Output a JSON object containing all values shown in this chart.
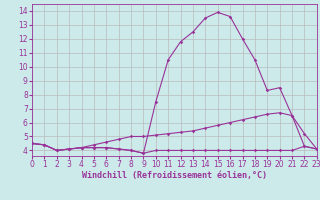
{
  "xlabel": "Windchill (Refroidissement éolien,°C)",
  "bg_color": "#cceaea",
  "line_color": "#993399",
  "grid_color": "#bbbbbb",
  "x_values": [
    0,
    1,
    2,
    3,
    4,
    5,
    6,
    7,
    8,
    9,
    10,
    11,
    12,
    13,
    14,
    15,
    16,
    17,
    18,
    19,
    20,
    21,
    22,
    23
  ],
  "line1": [
    4.5,
    4.4,
    4.0,
    4.1,
    4.2,
    4.2,
    4.2,
    4.1,
    4.0,
    3.8,
    4.0,
    4.0,
    4.0,
    4.0,
    4.0,
    4.0,
    4.0,
    4.0,
    4.0,
    4.0,
    4.0,
    4.0,
    4.3,
    4.1
  ],
  "line2": [
    4.5,
    4.4,
    4.0,
    4.1,
    4.2,
    4.4,
    4.6,
    4.8,
    5.0,
    5.0,
    5.1,
    5.2,
    5.3,
    5.4,
    5.6,
    5.8,
    6.0,
    6.2,
    6.4,
    6.6,
    6.7,
    6.5,
    5.2,
    4.1
  ],
  "line3": [
    4.5,
    4.4,
    4.0,
    4.1,
    4.2,
    4.2,
    4.2,
    4.1,
    4.0,
    3.8,
    7.5,
    10.5,
    11.8,
    12.5,
    13.5,
    13.9,
    13.6,
    12.0,
    10.5,
    8.3,
    8.5,
    6.5,
    4.3,
    4.1
  ],
  "ylim": [
    3.6,
    14.5
  ],
  "xlim": [
    0,
    23
  ],
  "yticks": [
    4,
    5,
    6,
    7,
    8,
    9,
    10,
    11,
    12,
    13,
    14
  ],
  "xticks": [
    0,
    1,
    2,
    3,
    4,
    5,
    6,
    7,
    8,
    9,
    10,
    11,
    12,
    13,
    14,
    15,
    16,
    17,
    18,
    19,
    20,
    21,
    22,
    23
  ],
  "xlabel_fontsize": 6.0,
  "tick_fontsize": 5.5
}
